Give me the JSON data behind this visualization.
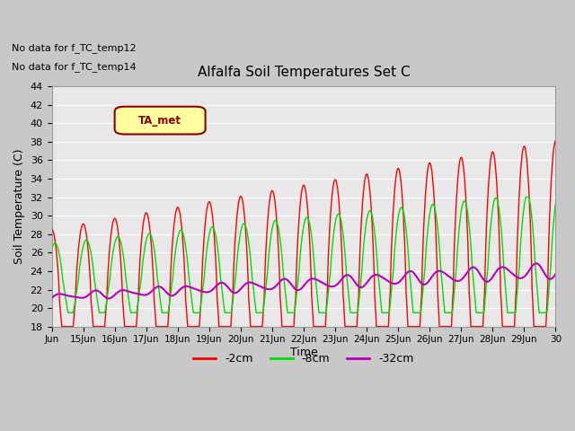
{
  "title": "Alfalfa Soil Temperatures Set C",
  "xlabel": "Time",
  "ylabel": "Soil Temperature (C)",
  "ylim": [
    18,
    44
  ],
  "yticks": [
    18,
    20,
    22,
    24,
    26,
    28,
    30,
    32,
    34,
    36,
    38,
    40,
    42,
    44
  ],
  "xtick_labels": [
    "Jun",
    "15Jun",
    "16Jun",
    "17Jun",
    "18Jun",
    "19Jun",
    "20Jun",
    "21Jun",
    "22Jun",
    "23Jun",
    "24Jun",
    "25Jun",
    "26Jun",
    "27Jun",
    "28Jun",
    "29Jun",
    "30"
  ],
  "annotation_lines": [
    "No data for f_TC_temp12",
    "No data for f_TC_temp14"
  ],
  "legend_box_label": "TA_met",
  "legend_box_color": "#ffffa0",
  "legend_box_edge": "#8b0000",
  "fig_bg_color": "#c8c8c8",
  "plot_bg_color": "#e8e8e8",
  "grid_color": "#ffffff",
  "line_colors": {
    "2cm": "#ff0000",
    "8cm": "#00dd00",
    "32cm": "#bb00bb"
  },
  "legend_entries": [
    "-2cm",
    "-8cm",
    "-32cm"
  ],
  "legend_colors": [
    "#ff0000",
    "#00dd00",
    "#bb00bb"
  ]
}
